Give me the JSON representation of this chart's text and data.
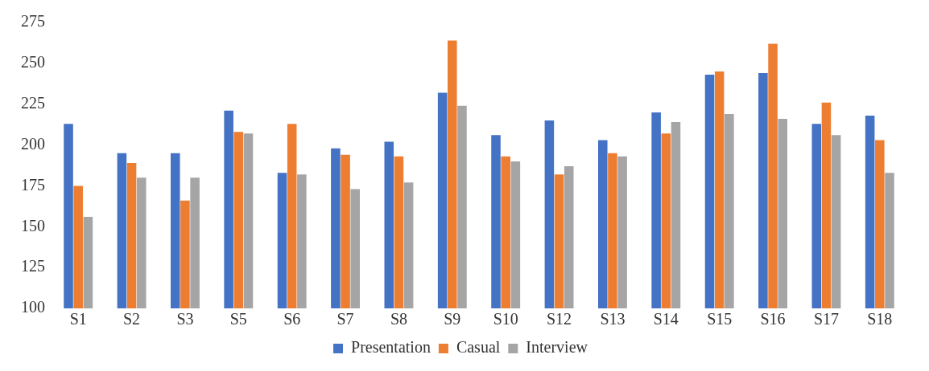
{
  "chart_data": {
    "type": "bar",
    "categories": [
      "S1",
      "S2",
      "S3",
      "S5",
      "S6",
      "S7",
      "S8",
      "S9",
      "S10",
      "S12",
      "S13",
      "S14",
      "S15",
      "S16",
      "S17",
      "S18"
    ],
    "series": [
      {
        "name": "Presentation",
        "color": "#4472c4",
        "values": [
          213,
          195,
          195,
          221,
          183,
          198,
          202,
          232,
          206,
          215,
          203,
          220,
          243,
          244,
          213,
          218
        ]
      },
      {
        "name": "Casual",
        "color": "#ed7d31",
        "values": [
          175,
          189,
          166,
          208,
          213,
          194,
          193,
          264,
          193,
          182,
          195,
          207,
          245,
          262,
          226,
          203
        ]
      },
      {
        "name": "Interview",
        "color": "#a5a5a5",
        "values": [
          156,
          180,
          180,
          207,
          182,
          173,
          177,
          224,
          190,
          187,
          193,
          214,
          219,
          216,
          206,
          183
        ]
      }
    ],
    "ylim": [
      100,
      275
    ],
    "yticks": [
      100,
      125,
      150,
      175,
      200,
      225,
      250,
      275
    ],
    "grid": false,
    "legend": "bottom"
  }
}
